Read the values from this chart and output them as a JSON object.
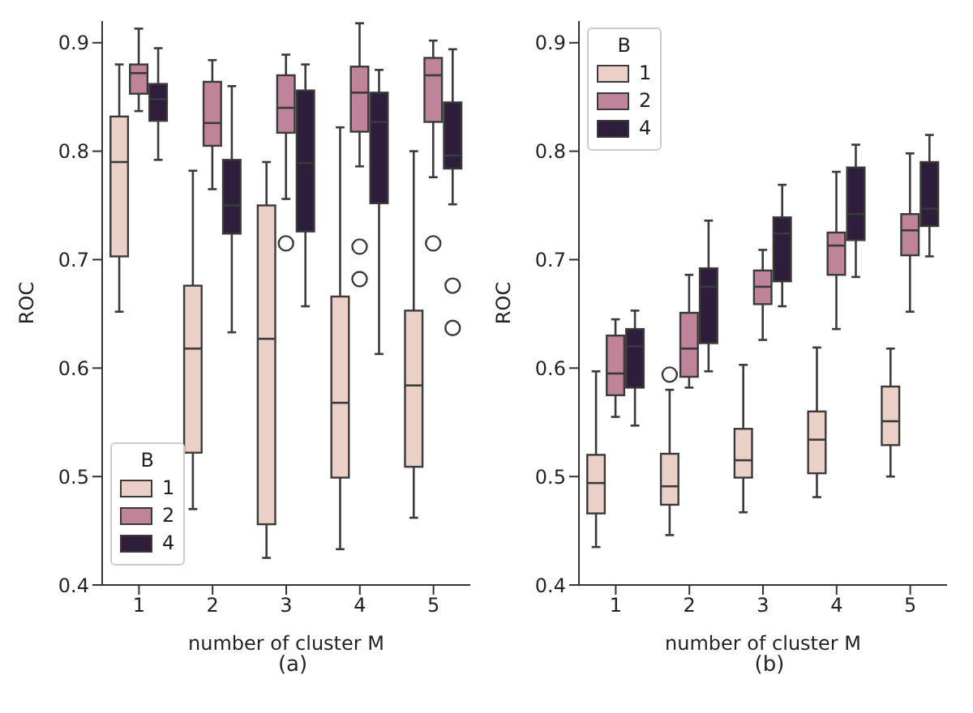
{
  "chart_data": [
    {
      "type": "box",
      "categories": [
        "1",
        "2",
        "3",
        "4",
        "5"
      ],
      "xlabel": "number of cluster M",
      "ylabel": "ROC",
      "ylim": [
        0.4,
        0.92
      ],
      "yticks": [
        0.4,
        0.5,
        0.6,
        0.7,
        0.8,
        0.9
      ],
      "grid": false,
      "legend": "bottom left",
      "legend_title": "B",
      "annotations": [
        "(a)"
      ],
      "series": [
        {
          "name": "1",
          "color": "#ebd0c8",
          "boxes": [
            {
              "low": 0.652,
              "q1": 0.703,
              "median": 0.79,
              "q3": 0.832,
              "high": 0.88
            },
            {
              "low": 0.47,
              "q1": 0.522,
              "median": 0.618,
              "q3": 0.676,
              "high": 0.782
            },
            {
              "low": 0.425,
              "q1": 0.456,
              "median": 0.627,
              "q3": 0.75,
              "high": 0.79
            },
            {
              "low": 0.433,
              "q1": 0.499,
              "median": 0.568,
              "q3": 0.666,
              "high": 0.822
            },
            {
              "low": 0.462,
              "q1": 0.509,
              "median": 0.584,
              "q3": 0.653,
              "high": 0.8
            }
          ]
        },
        {
          "name": "2",
          "color": "#c0849a",
          "boxes": [
            {
              "low": 0.837,
              "q1": 0.853,
              "median": 0.872,
              "q3": 0.88,
              "high": 0.913
            },
            {
              "low": 0.765,
              "q1": 0.805,
              "median": 0.826,
              "q3": 0.864,
              "high": 0.884
            },
            {
              "low": 0.756,
              "q1": 0.817,
              "median": 0.84,
              "q3": 0.87,
              "high": 0.889,
              "outliers": [
                0.715
              ]
            },
            {
              "low": 0.786,
              "q1": 0.818,
              "median": 0.854,
              "q3": 0.878,
              "high": 0.918,
              "outliers": [
                0.712,
                0.682
              ]
            },
            {
              "low": 0.776,
              "q1": 0.827,
              "median": 0.87,
              "q3": 0.886,
              "high": 0.902,
              "outliers": [
                0.715
              ]
            }
          ]
        },
        {
          "name": "4",
          "color": "#2e1e3b",
          "boxes": [
            {
              "low": 0.792,
              "q1": 0.828,
              "median": 0.848,
              "q3": 0.862,
              "high": 0.895
            },
            {
              "low": 0.633,
              "q1": 0.724,
              "median": 0.75,
              "q3": 0.792,
              "high": 0.86
            },
            {
              "low": 0.657,
              "q1": 0.726,
              "median": 0.789,
              "q3": 0.856,
              "high": 0.88
            },
            {
              "low": 0.613,
              "q1": 0.752,
              "median": 0.827,
              "q3": 0.854,
              "high": 0.875
            },
            {
              "low": 0.751,
              "q1": 0.784,
              "median": 0.796,
              "q3": 0.845,
              "high": 0.894,
              "outliers": [
                0.676,
                0.637
              ]
            }
          ]
        }
      ]
    },
    {
      "type": "box",
      "categories": [
        "1",
        "2",
        "3",
        "4",
        "5"
      ],
      "xlabel": "number of cluster M",
      "ylabel": "ROC",
      "ylim": [
        0.4,
        0.92
      ],
      "yticks": [
        0.4,
        0.5,
        0.6,
        0.7,
        0.8,
        0.9
      ],
      "grid": false,
      "legend": "top left",
      "legend_title": "B",
      "annotations": [
        "(b)"
      ],
      "series": [
        {
          "name": "1",
          "color": "#ebd0c8",
          "boxes": [
            {
              "low": 0.435,
              "q1": 0.466,
              "median": 0.494,
              "q3": 0.52,
              "high": 0.597
            },
            {
              "low": 0.446,
              "q1": 0.474,
              "median": 0.491,
              "q3": 0.521,
              "high": 0.58,
              "outliers": [
                0.594
              ]
            },
            {
              "low": 0.467,
              "q1": 0.499,
              "median": 0.515,
              "q3": 0.544,
              "high": 0.603
            },
            {
              "low": 0.481,
              "q1": 0.503,
              "median": 0.534,
              "q3": 0.56,
              "high": 0.619
            },
            {
              "low": 0.5,
              "q1": 0.529,
              "median": 0.551,
              "q3": 0.583,
              "high": 0.618
            }
          ]
        },
        {
          "name": "2",
          "color": "#c0849a",
          "boxes": [
            {
              "low": 0.555,
              "q1": 0.575,
              "median": 0.595,
              "q3": 0.63,
              "high": 0.645
            },
            {
              "low": 0.582,
              "q1": 0.592,
              "median": 0.618,
              "q3": 0.651,
              "high": 0.686
            },
            {
              "low": 0.626,
              "q1": 0.659,
              "median": 0.675,
              "q3": 0.69,
              "high": 0.709
            },
            {
              "low": 0.636,
              "q1": 0.686,
              "median": 0.713,
              "q3": 0.725,
              "high": 0.781
            },
            {
              "low": 0.652,
              "q1": 0.704,
              "median": 0.727,
              "q3": 0.742,
              "high": 0.798
            }
          ]
        },
        {
          "name": "4",
          "color": "#2e1e3b",
          "boxes": [
            {
              "low": 0.547,
              "q1": 0.582,
              "median": 0.62,
              "q3": 0.636,
              "high": 0.653
            },
            {
              "low": 0.597,
              "q1": 0.623,
              "median": 0.675,
              "q3": 0.692,
              "high": 0.736
            },
            {
              "low": 0.657,
              "q1": 0.68,
              "median": 0.724,
              "q3": 0.739,
              "high": 0.769
            },
            {
              "low": 0.684,
              "q1": 0.718,
              "median": 0.742,
              "q3": 0.785,
              "high": 0.806
            },
            {
              "low": 0.703,
              "q1": 0.731,
              "median": 0.747,
              "q3": 0.79,
              "high": 0.815
            }
          ]
        }
      ]
    }
  ]
}
